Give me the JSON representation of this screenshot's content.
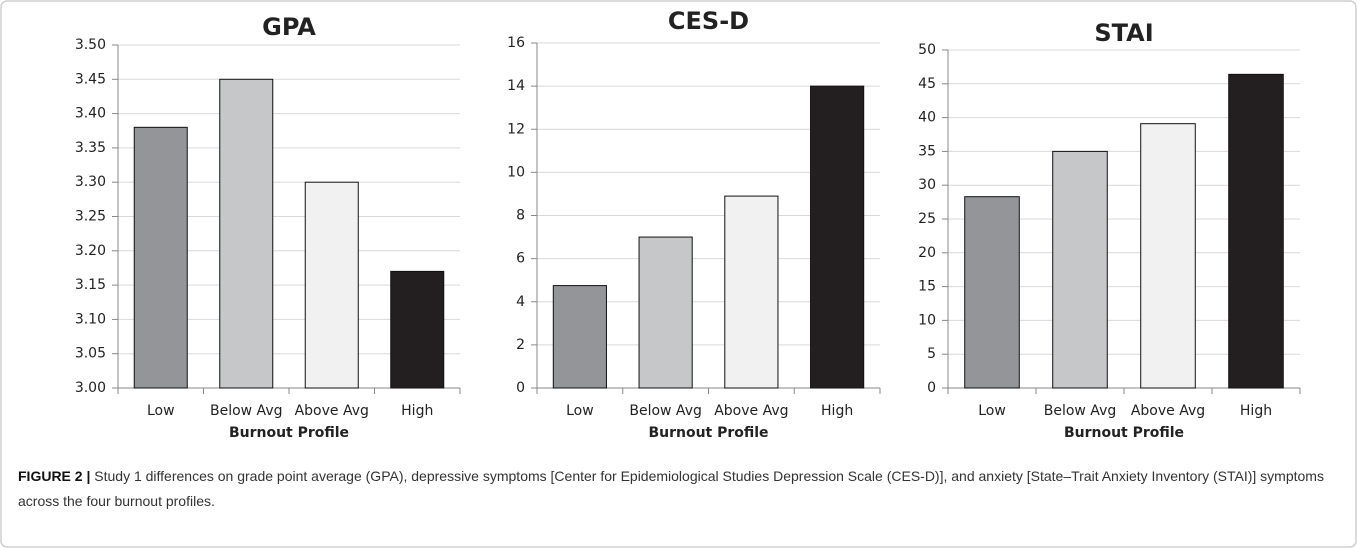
{
  "chart_data": [
    {
      "type": "bar",
      "title": "GPA",
      "xlabel": "Burnout Profile",
      "categories": [
        "Low",
        "Below Avg",
        "Above Avg",
        "High"
      ],
      "values": [
        3.38,
        3.45,
        3.3,
        3.17
      ],
      "colors": [
        "#939598",
        "#c6c7c8",
        "#f1f1f2",
        "#231f20"
      ],
      "ylim": [
        3.0,
        3.5
      ],
      "yticks": [
        {
          "value": 3.0,
          "label": "3.00"
        },
        {
          "value": 3.05,
          "label": "3.05"
        },
        {
          "value": 3.1,
          "label": "3.10"
        },
        {
          "value": 3.15,
          "label": "3.15"
        },
        {
          "value": 3.2,
          "label": "3.20"
        },
        {
          "value": 3.25,
          "label": "3.25"
        },
        {
          "value": 3.3,
          "label": "3.30"
        },
        {
          "value": 3.35,
          "label": "3.35"
        },
        {
          "value": 3.4,
          "label": "3.40"
        },
        {
          "value": 3.45,
          "label": "3.45"
        },
        {
          "value": 3.5,
          "label": "3.50"
        }
      ],
      "grid": true
    },
    {
      "type": "bar",
      "title": "CES-D",
      "xlabel": "Burnout Profile",
      "categories": [
        "Low",
        "Below Avg",
        "Above Avg",
        "High"
      ],
      "values": [
        4.75,
        7.0,
        8.9,
        14.0
      ],
      "colors": [
        "#939598",
        "#c6c7c8",
        "#f1f1f2",
        "#231f20"
      ],
      "ylim": [
        0,
        16
      ],
      "yticks": [
        0,
        2,
        4,
        6,
        8,
        10,
        12,
        14,
        16
      ],
      "grid": true
    },
    {
      "type": "bar",
      "title": "STAI",
      "xlabel": "Burnout Profile",
      "categories": [
        "Low",
        "Below Avg",
        "Above Avg",
        "High"
      ],
      "values": [
        28.3,
        35.0,
        39.1,
        46.4
      ],
      "colors": [
        "#939598",
        "#c6c7c8",
        "#f1f1f2",
        "#231f20"
      ],
      "ylim": [
        0,
        50
      ],
      "yticks": [
        0,
        5,
        10,
        15,
        20,
        25,
        30,
        35,
        40,
        45,
        50
      ],
      "grid": true
    }
  ],
  "caption": {
    "label": "FIGURE 2 |",
    "text": "Study 1 differences on grade point average (GPA), depressive symptoms [Center for Epidemiological Studies Depression Scale (CES-D)], and anxiety [State–Trait Anxiety Inventory (STAI)] symptoms across the four burnout profiles."
  }
}
